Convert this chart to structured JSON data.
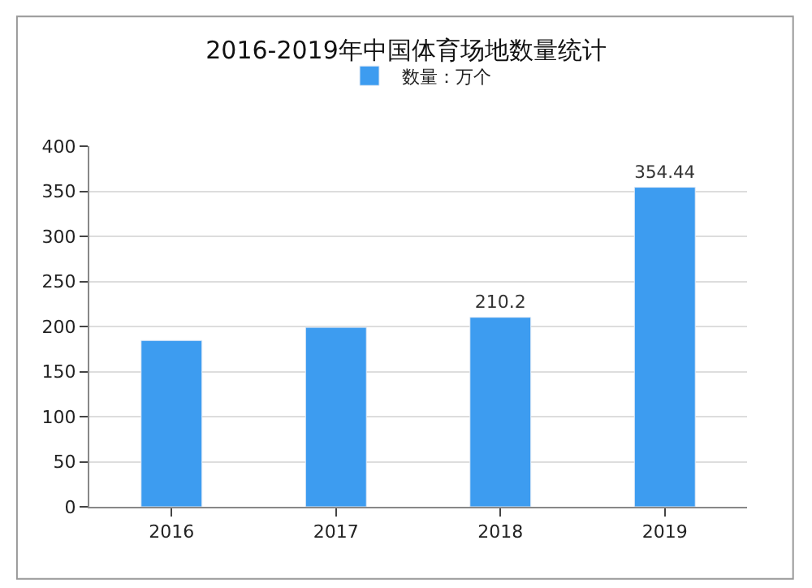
{
  "chart_data": {
    "type": "bar",
    "title": "2016-2019年中国体育场地数量统计",
    "categories": [
      "2016",
      "2017",
      "2018",
      "2019"
    ],
    "series": [
      {
        "name": "数量：万个",
        "color": "#3d9cf0",
        "values": [
          184.5,
          199,
          210.2,
          354.44
        ],
        "value_labels": [
          null,
          null,
          "210.2",
          "354.44"
        ]
      }
    ],
    "ylim": [
      0,
      400
    ],
    "yticks": [
      0,
      50,
      100,
      150,
      200,
      250,
      300,
      350,
      400
    ],
    "grid": "y",
    "legend": "top"
  }
}
